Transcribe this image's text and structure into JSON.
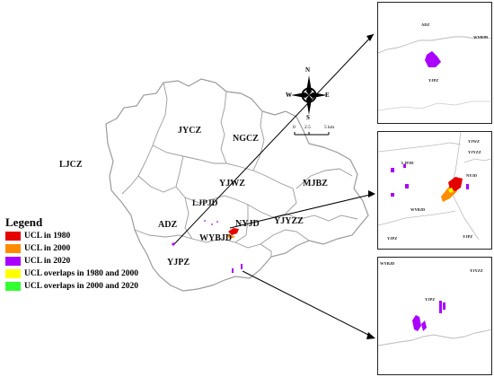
{
  "regions": {
    "ljcz": "LJCZ",
    "jycz": "JYCZ",
    "ngcz": "NGCZ",
    "yjwz": "YJWZ",
    "mjbz": "MJBZ",
    "ljpjd": "LJPJD",
    "adz": "ADZ",
    "nyjd": "NYJD",
    "yjyzz": "YJYZZ",
    "wybjd": "WYBJD",
    "yjpz": "YJPZ"
  },
  "compass": {
    "n": "N",
    "s": "S",
    "e": "E",
    "w": "W"
  },
  "scale": {
    "zero": "0",
    "mid": "2.5",
    "end": "5 km"
  },
  "legend": {
    "title": "Legend",
    "items": [
      {
        "label": "UCL in 1980",
        "color": "#e60000"
      },
      {
        "label": "UCL in 2000",
        "color": "#ff8c00"
      },
      {
        "label": "UCL in 2020",
        "color": "#aa00ff"
      },
      {
        "label": "UCL overlaps in 1980 and 2000",
        "color": "#ffff00"
      },
      {
        "label": "UCL overlaps in 2000 and 2020",
        "color": "#33ff33"
      }
    ]
  },
  "insets": {
    "top": {
      "adz": "ADZ",
      "wybjd": "WYBJD",
      "yjpz": "YJPZ"
    },
    "middle": {
      "yjwz": "YJWZ",
      "yjyzz": "YJYZZ",
      "ljpjd": "LJPJD",
      "nyjd": "NYJD",
      "wybjd": "WYBJD",
      "yjpz_left": "YJPZ",
      "yjpz_right": "YJPZ"
    },
    "bottom": {
      "wybjd": "WYBJD",
      "yjyzz": "YJYZZ",
      "yjpz": "YJPZ"
    }
  }
}
